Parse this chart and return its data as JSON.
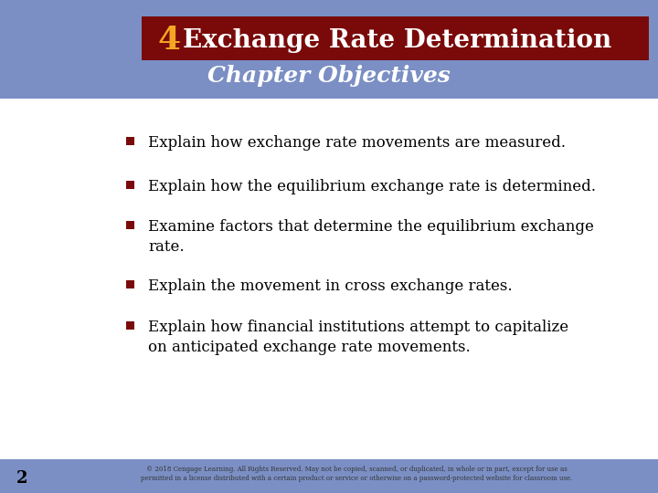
{
  "bg_color": "#7B8FC4",
  "title_bar_color": "#7A0A0A",
  "title_number": "4",
  "title_number_color": "#F5A623",
  "title_text": "Exchange Rate Determination",
  "title_text_color": "#FFFFFF",
  "subtitle": "Chapter Objectives",
  "subtitle_color": "#FFFFFF",
  "content_bg": "#FFFFFF",
  "bullet_color": "#7A0A0A",
  "bullet_text_color": "#000000",
  "bullets": [
    "Explain how exchange rate movements are measured.",
    "Explain how the equilibrium exchange rate is determined.",
    "Examine factors that determine the equilibrium exchange\nrate.",
    "Explain the movement in cross exchange rates.",
    "Explain how financial institutions attempt to capitalize\non anticipated exchange rate movements."
  ],
  "page_number": "2",
  "page_number_color": "#000000",
  "footer_text": "© 2018 Cengage Learning. All Rights Reserved. May not be copied, scanned, or duplicated, in whole or in part, except for use as\npermitted in a license distributed with a certain product or service or otherwise on a password-protected website for classroom use.",
  "footer_color": "#333333"
}
